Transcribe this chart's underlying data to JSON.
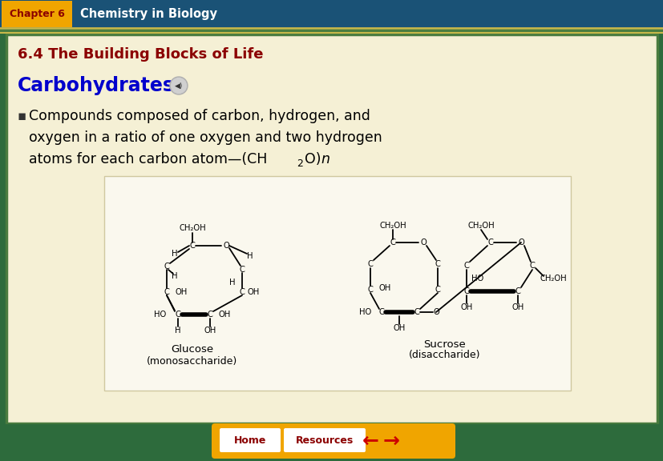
{
  "bg_outer": "#2d6b3c",
  "bg_header": "#1a5276",
  "header_tab_color": "#f0a500",
  "header_tab_text": "Chapter 6",
  "header_tab_text_color": "#8b0000",
  "header_text": "Chemistry in Biology",
  "header_text_color": "#ffffff",
  "bg_content": "#f5f0d5",
  "border_line_color_outer": "#4a7c3f",
  "border_line_color_gold": "#c8b84a",
  "title_text": "6.4 The Building Blocks of Life",
  "title_color": "#8b0000",
  "section_title": "Carbohydrates",
  "section_title_color": "#0000cc",
  "bullet_color": "#000000",
  "footer_color": "#f0a500",
  "footer_btn_text_color": "#8b0000",
  "footer_home": "Home",
  "footer_resources": "Resources",
  "fig_width": 8.28,
  "fig_height": 5.76,
  "dpi": 100
}
